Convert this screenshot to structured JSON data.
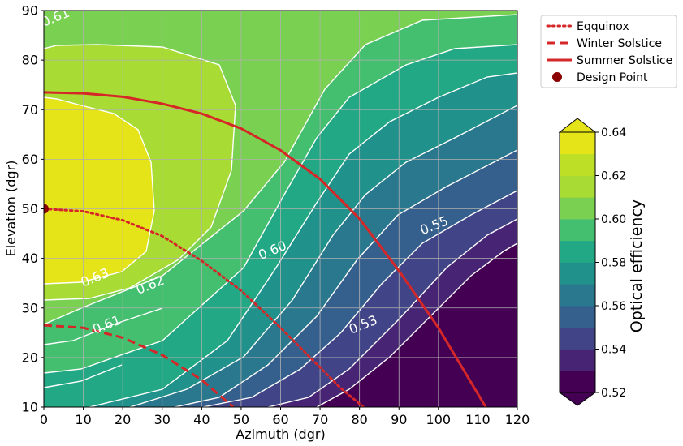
{
  "chart_data": {
    "type": "contour",
    "xlabel": "Azimuth (dgr)",
    "ylabel": "Elevation (dgr)",
    "xlim": [
      0,
      120
    ],
    "ylim": [
      10,
      90
    ],
    "xticks": [
      "0",
      "10",
      "20",
      "30",
      "40",
      "50",
      "60",
      "70",
      "80",
      "90",
      "100",
      "110",
      "120"
    ],
    "yticks": [
      "10",
      "20",
      "30",
      "40",
      "50",
      "60",
      "70",
      "80",
      "90"
    ],
    "grid": true,
    "colorbar": {
      "label": "Optical efficiency",
      "min": 0.52,
      "max": 0.64,
      "levels": [
        0.52,
        0.53,
        0.54,
        0.55,
        0.56,
        0.57,
        0.58,
        0.59,
        0.6,
        0.61,
        0.62,
        0.63,
        0.64
      ],
      "tick_labels": [
        "0.52",
        "0.54",
        "0.56",
        "0.58",
        "0.60",
        "0.62",
        "0.64"
      ],
      "colors": [
        "#440154",
        "#482475",
        "#414487",
        "#355f8d",
        "#2a788e",
        "#21918c",
        "#22a884",
        "#44bf70",
        "#7ad151",
        "#a8db34",
        "#bddf26",
        "#e5e419"
      ]
    },
    "contour_labels": [
      {
        "text": "0.61",
        "x": 3,
        "y": 88.5
      },
      {
        "text": "0.63",
        "x": 13,
        "y": 36
      },
      {
        "text": "0.62",
        "x": 27,
        "y": 34.5
      },
      {
        "text": "0.61",
        "x": 16,
        "y": 26.5
      },
      {
        "text": "0.60",
        "x": 58,
        "y": 41.5
      },
      {
        "text": "0.55",
        "x": 99,
        "y": 46.5
      },
      {
        "text": "0.53",
        "x": 81,
        "y": 26.5
      }
    ],
    "series": [
      {
        "name": "Eqquinox",
        "style": "dotted",
        "color": "#d62728",
        "x": [
          0,
          10,
          20,
          30,
          40,
          50,
          60,
          70,
          75,
          81
        ],
        "y": [
          50,
          49.5,
          47.7,
          44.5,
          39.5,
          33.5,
          26,
          18,
          14,
          10
        ]
      },
      {
        "name": "Winter Solstice",
        "style": "dashed",
        "color": "#d62728",
        "x": [
          0,
          10,
          20,
          30,
          40,
          48
        ],
        "y": [
          26.5,
          26,
          24,
          20.5,
          15.5,
          10
        ]
      },
      {
        "name": "Summer Solstice",
        "style": "solid",
        "color": "#d62728",
        "x": [
          0,
          10,
          20,
          30,
          40,
          50,
          60,
          70,
          80,
          90,
          100,
          112
        ],
        "y": [
          73.5,
          73.3,
          72.6,
          71.2,
          69.2,
          66.2,
          61.8,
          56,
          48,
          37.5,
          26,
          10
        ]
      }
    ],
    "design_point": {
      "name": "Design Point",
      "x": 0,
      "y": 50,
      "color": "#8b0000"
    },
    "legend_position": "outside-top-right"
  }
}
